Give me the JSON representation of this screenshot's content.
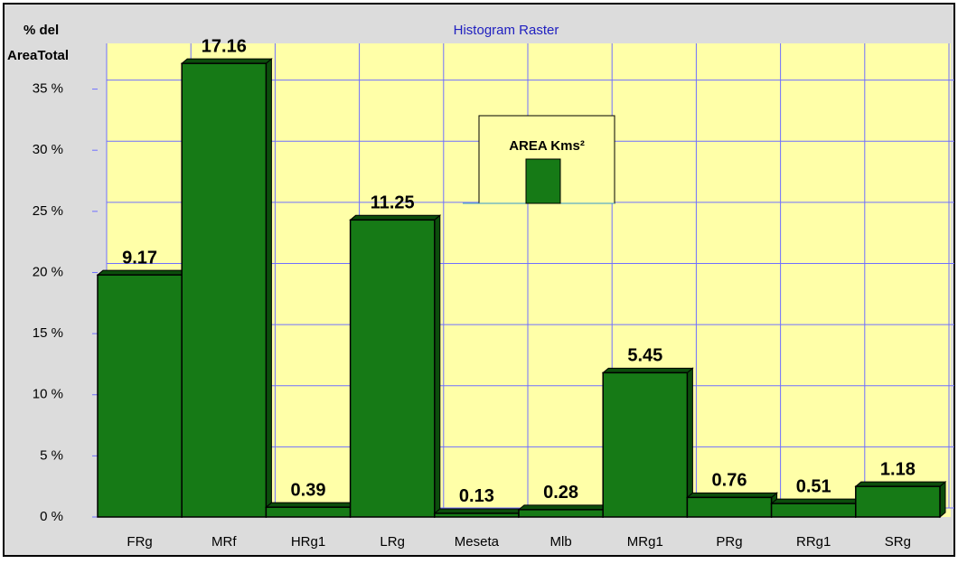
{
  "chart_data": {
    "type": "bar",
    "title": "Histogram  Raster",
    "y_label": [
      "% del",
      "AreaTotal"
    ],
    "categories": [
      "FRg",
      "MRf",
      "HRg1",
      "LRg",
      "Meseta",
      "Mlb",
      "MRg1",
      "PRg",
      "RRg1",
      "SRg"
    ],
    "series": [
      {
        "name": "AREA Kms²",
        "color": "#167a16",
        "values": [
          19.8,
          37.1,
          0.8,
          24.3,
          0.3,
          0.6,
          11.8,
          1.6,
          1.1,
          2.5
        ],
        "area_values": [
          9.17,
          17.16,
          0.39,
          11.25,
          0.13,
          0.28,
          5.45,
          0.76,
          0.51,
          1.18
        ]
      }
    ],
    "ylim": [
      0,
      38
    ],
    "yticks": [
      {
        "value": 0,
        "label": "0 %"
      },
      {
        "value": 5,
        "label": "5 %"
      },
      {
        "value": 10,
        "label": "10 %"
      },
      {
        "value": 15,
        "label": "15 %"
      },
      {
        "value": 20,
        "label": "20 %"
      },
      {
        "value": 25,
        "label": "25 %"
      },
      {
        "value": 30,
        "label": "30 %"
      },
      {
        "value": 35,
        "label": "35 %"
      }
    ],
    "grid": true
  }
}
